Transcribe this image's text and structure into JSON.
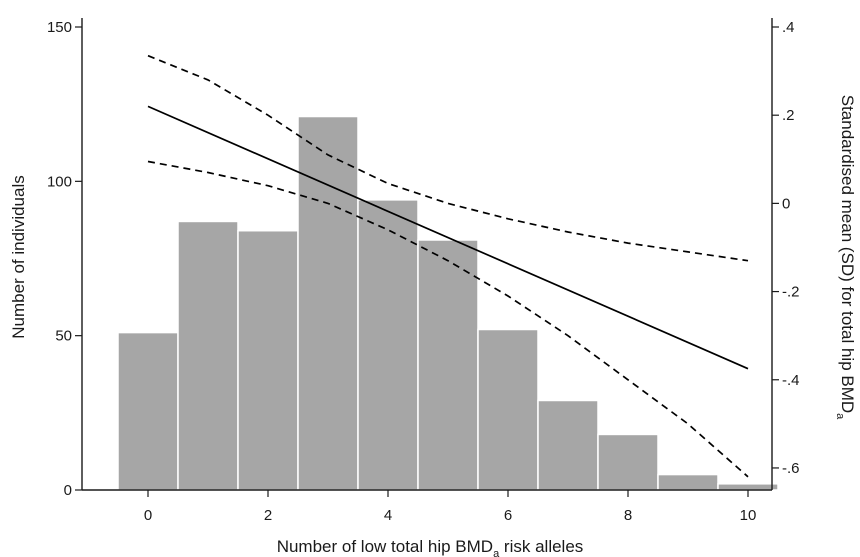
{
  "chart_data": {
    "type": "bar",
    "title": "",
    "xlabel": {
      "main": "Number of low total hip BMD",
      "sub": "a",
      "suffix": " risk alleles"
    },
    "ylabel_left": "Number of individuals",
    "ylabel_right": {
      "main": "Standardised mean (SD) for total hip BMD",
      "sub": "a"
    },
    "xlim": [
      -1.1,
      10.4
    ],
    "ylim_left": [
      0,
      150
    ],
    "ylim_right": [
      -0.65,
      0.4
    ],
    "x_ticks": [
      0,
      2,
      4,
      6,
      8,
      10
    ],
    "x_tick_labels": [
      "0",
      "2",
      "4",
      "6",
      "8",
      "10"
    ],
    "y_left_ticks": [
      0,
      50,
      100,
      150
    ],
    "y_left_tick_labels": [
      "0",
      "50",
      "100",
      "150"
    ],
    "y_right_ticks": [
      0.4,
      0.2,
      0,
      -0.2,
      -0.4,
      -0.6
    ],
    "y_right_tick_labels": [
      ".4",
      ".2",
      "0",
      "-.2",
      "-.4",
      "-.6"
    ],
    "grid": false,
    "colors": {
      "bars": "#a6a6a6",
      "bar_edge": "#ffffff",
      "lines": "#000000",
      "axes": "#1a1a1a"
    },
    "histogram": {
      "x": [
        0,
        1,
        2,
        3,
        4,
        5,
        6,
        7,
        8,
        9,
        10
      ],
      "counts": [
        51,
        87,
        84,
        121,
        94,
        81,
        52,
        29,
        18,
        5,
        2
      ]
    },
    "series": [
      {
        "style": "solid",
        "x": [
          0,
          10
        ],
        "y": [
          0.22,
          -0.375
        ]
      },
      {
        "style": "dashed",
        "x": [
          0,
          1,
          2,
          3,
          4,
          5,
          6,
          7,
          8,
          9,
          10
        ],
        "y": [
          0.335,
          0.28,
          0.2,
          0.11,
          0.045,
          0.0,
          -0.035,
          -0.065,
          -0.09,
          -0.11,
          -0.13
        ]
      },
      {
        "style": "dashed",
        "x": [
          0,
          1,
          2,
          3,
          4,
          5,
          6,
          7,
          8,
          9,
          10
        ],
        "y": [
          0.095,
          0.07,
          0.04,
          0.0,
          -0.06,
          -0.13,
          -0.21,
          -0.3,
          -0.4,
          -0.5,
          -0.62
        ]
      }
    ]
  }
}
